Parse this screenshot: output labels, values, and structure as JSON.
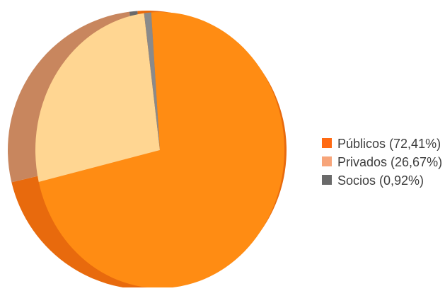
{
  "chart_data": {
    "type": "pie",
    "slices": [
      {
        "label": "Públicos",
        "percent_label": "(72,41%)",
        "value": 72.41,
        "color": "#ff8c13",
        "side_color": "#e86a0d"
      },
      {
        "label": "Privados",
        "percent_label": "(26,67%)",
        "value": 26.67,
        "color": "#ffd692",
        "side_color": "#c8865e"
      },
      {
        "label": "Socios",
        "percent_label": "(0,92%)",
        "value": 0.92,
        "color": "#8a8a8a",
        "side_color": "#6a6a6a"
      }
    ],
    "legend": {
      "position": "right",
      "items": [
        {
          "text": "Públicos (72,41%)",
          "color": "#ff6a13"
        },
        {
          "text": "Privados (26,67%)",
          "color": "#f7a57a"
        },
        {
          "text": "Socios (0,92%)",
          "color": "#6a6a6a"
        }
      ]
    },
    "style": "3d-tilted"
  }
}
